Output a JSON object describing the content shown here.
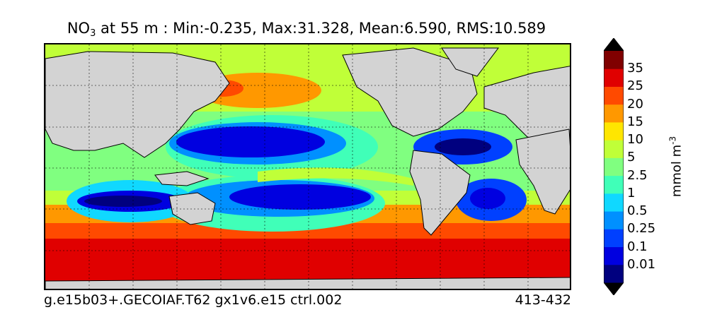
{
  "title": {
    "variable_main": "NO",
    "variable_sub": "3",
    "rest": " at 55 m : Min:-0.235, Max:31.328, Mean:6.590, RMS:10.589"
  },
  "footer": {
    "left": "g.e15b03+.GECOIAF.T62 gx1v6.e15 ctrl.002",
    "right": "413-432"
  },
  "colorbar": {
    "label": "mmol m",
    "label_exponent": "-3",
    "ticks": [
      "0.01",
      "0.1",
      "0.25",
      "0.5",
      "1",
      "2.5",
      "5",
      "10",
      "15",
      "20",
      "25",
      "35"
    ],
    "colors": [
      "#00007f",
      "#0000e0",
      "#0040ff",
      "#0090ff",
      "#10d8ff",
      "#40ffb8",
      "#80ff80",
      "#c0ff38",
      "#ffe600",
      "#ff9800",
      "#ff4a00",
      "#e00000",
      "#800000"
    ],
    "over_color": "#000000",
    "under_color": "#000000"
  },
  "map": {
    "land_color": "#d3d3d3",
    "projection": "global lat-lon",
    "gridlines": "dashed"
  }
}
